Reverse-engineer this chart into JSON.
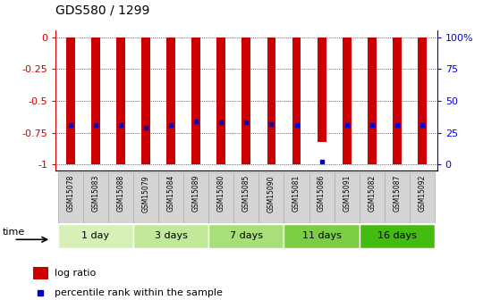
{
  "title": "GDS580 / 1299",
  "samples": [
    "GSM15078",
    "GSM15083",
    "GSM15088",
    "GSM15079",
    "GSM15084",
    "GSM15089",
    "GSM15080",
    "GSM15085",
    "GSM15090",
    "GSM15081",
    "GSM15086",
    "GSM15091",
    "GSM15082",
    "GSM15087",
    "GSM15092"
  ],
  "log_ratios": [
    -1.0,
    -1.0,
    -1.0,
    -1.0,
    -1.0,
    -1.0,
    -1.0,
    -1.0,
    -1.0,
    -1.0,
    -0.82,
    -1.0,
    -1.0,
    -1.0,
    -1.0
  ],
  "percentile_ranks": [
    0.31,
    0.31,
    0.31,
    0.29,
    0.31,
    0.34,
    0.33,
    0.33,
    0.32,
    0.31,
    0.02,
    0.31,
    0.31,
    0.31,
    0.31
  ],
  "groups": [
    {
      "label": "1 day",
      "indices": [
        0,
        1,
        2
      ],
      "color": "#d6f0b8"
    },
    {
      "label": "3 days",
      "indices": [
        3,
        4,
        5
      ],
      "color": "#c2e89a"
    },
    {
      "label": "7 days",
      "indices": [
        6,
        7,
        8
      ],
      "color": "#a8df78"
    },
    {
      "label": "11 days",
      "indices": [
        9,
        10,
        11
      ],
      "color": "#7ccc44"
    },
    {
      "label": "16 days",
      "indices": [
        12,
        13,
        14
      ],
      "color": "#44bb10"
    }
  ],
  "bar_color": "#cc0000",
  "dot_color": "#0000cc",
  "bar_width": 0.35,
  "ylim": [
    -1.05,
    0.05
  ],
  "yticks": [
    0,
    -0.25,
    -0.5,
    -0.75,
    -1.0
  ],
  "ytick_labels_left": [
    "0",
    "-0.25",
    "-0.5",
    "-0.75",
    "-1"
  ],
  "ytick_labels_right": [
    "100%",
    "75",
    "50",
    "25",
    "0"
  ],
  "ytick_values_right": [
    0,
    -0.25,
    -0.5,
    -0.75,
    -1.0
  ],
  "right_axis_color": "#0000cc",
  "left_axis_color": "#cc0000",
  "sample_box_color": "#d4d4d4",
  "sample_box_edge": "#aaaaaa",
  "legend_log_ratio": "log ratio",
  "legend_percentile": "percentile rank within the sample"
}
